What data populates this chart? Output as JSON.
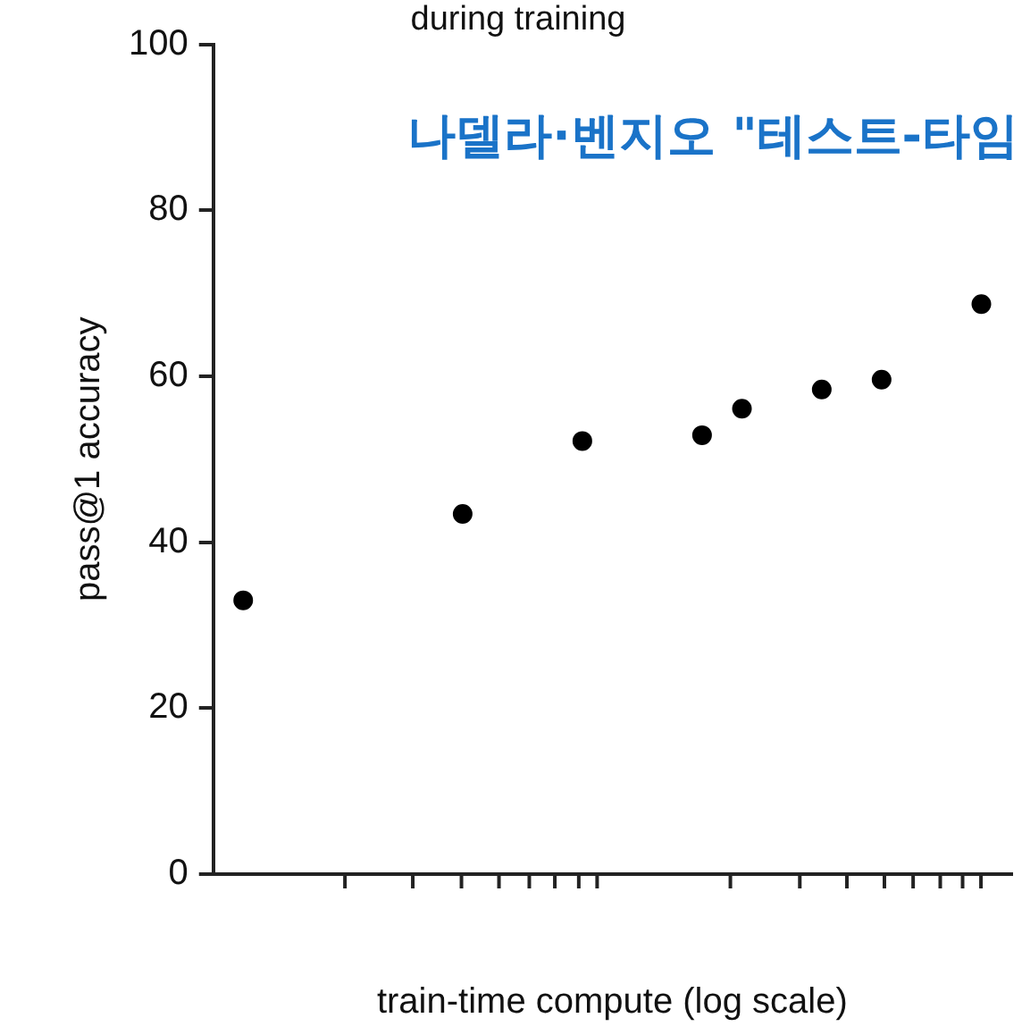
{
  "chart_data": {
    "type": "scatter",
    "title": "during training",
    "xlabel": "train-time compute (log scale)",
    "ylabel": "pass@1 accuracy",
    "annotations": [
      "나델라·벤지오 \"테스트-타임"
    ],
    "categories": [
      null,
      null,
      null,
      null,
      null,
      null,
      null,
      null,
      null,
      null,
      null,
      null,
      null,
      null,
      null,
      null,
      null,
      null,
      null,
      null,
      null,
      null,
      null,
      null,
      null,
      null,
      null,
      null,
      null,
      null,
      null,
      null,
      null,
      null,
      null,
      null,
      null,
      null,
      null,
      null
    ],
    "ylim": [
      0,
      100
    ],
    "yticks": [
      0,
      20,
      40,
      60,
      80,
      100
    ],
    "tick_labels": "y",
    "grid": false,
    "legend": false,
    "marker": "circle",
    "series": [
      {
        "color": "#000000",
        "values": [
          null,
          33.0,
          null,
          null,
          null,
          null,
          null,
          null,
          null,
          null,
          null,
          null,
          43.4,
          null,
          null,
          null,
          null,
          null,
          52.2,
          null,
          null,
          null,
          null,
          null,
          52.9,
          null,
          56.1,
          null,
          null,
          null,
          58.4,
          null,
          null,
          59.6,
          null,
          null,
          null,
          null,
          68.7,
          null
        ]
      }
    ]
  }
}
